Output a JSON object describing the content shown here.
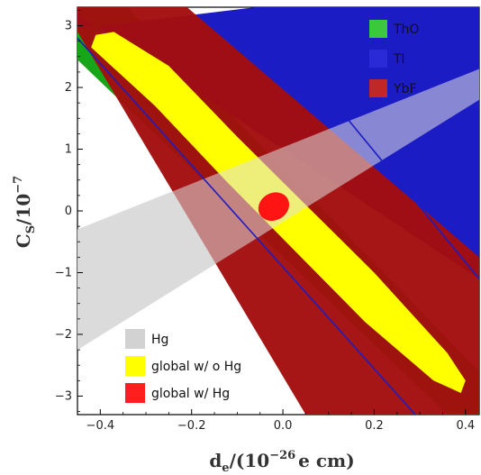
{
  "chart_data": {
    "type": "area",
    "xlabel_main": "d",
    "xlabel_sub": "e",
    "xlabel_rest": "/(10",
    "xlabel_sup": "−26",
    "xlabel_end": "e cm)",
    "ylabel_main": "C",
    "ylabel_sub": "S",
    "ylabel_rest": "/10",
    "ylabel_sup": "−7",
    "xlim": [
      -0.45,
      0.43
    ],
    "ylim": [
      -3.3,
      3.3
    ],
    "xticks": [
      -0.4,
      -0.2,
      0.0,
      0.2,
      0.4
    ],
    "xtick_labels": [
      "−0.4",
      "−0.2",
      "0.0",
      "0.2",
      "0.4"
    ],
    "yticks": [
      -3,
      -2,
      -1,
      0,
      1,
      2,
      3
    ],
    "ytick_labels": [
      "−3",
      "−2",
      "−1",
      "0",
      "1",
      "2",
      "3"
    ],
    "legend_top": [
      {
        "label": "ThO",
        "color": "#3cc83c"
      },
      {
        "label": "Tl",
        "color": "#2a2ad6"
      },
      {
        "label": "YbF",
        "color": "#c02828"
      }
    ],
    "legend_bottom": [
      {
        "label": "Hg",
        "color": "#d2d2d2"
      },
      {
        "label": "global w/ o Hg",
        "color": "#ffff00"
      },
      {
        "label": "global w/  Hg",
        "color": "#ff1e1e"
      }
    ],
    "regions": {
      "Hg": {
        "color": "#cfcfcf",
        "polygon": [
          [
            -0.45,
            -0.3
          ],
          [
            -0.45,
            -2.25
          ],
          [
            0.43,
            1.8
          ],
          [
            0.43,
            2.3
          ]
        ]
      },
      "ThO": {
        "color": "#17a617",
        "polygon": [
          [
            -0.45,
            3.3
          ],
          [
            -0.45,
            2.45
          ],
          [
            0.36,
            -3.3
          ],
          [
            0.43,
            -3.3
          ],
          [
            0.43,
            -2.6
          ],
          [
            -0.34,
            3.3
          ]
        ]
      },
      "Tl": {
        "color": "#1c1cc4",
        "polygon": [
          [
            -0.45,
            2.95
          ],
          [
            -0.06,
            3.3
          ],
          [
            0.43,
            3.3
          ],
          [
            0.43,
            -1.1
          ],
          [
            -0.45,
            3.2
          ]
        ]
      },
      "YbF": {
        "color": "#a30e0e",
        "polygon": [
          [
            -0.45,
            3.3
          ],
          [
            -0.21,
            3.3
          ],
          [
            0.43,
            -0.75
          ],
          [
            0.43,
            -3.3
          ],
          [
            0.05,
            -3.3
          ],
          [
            -0.45,
            2.9
          ]
        ]
      },
      "global_wo_Hg": {
        "color": "#ffff00",
        "polygon": [
          [
            -0.41,
            2.85
          ],
          [
            -0.37,
            2.9
          ],
          [
            -0.25,
            2.35
          ],
          [
            -0.1,
            1.2
          ],
          [
            0.05,
            0.1
          ],
          [
            0.2,
            -1.0
          ],
          [
            0.36,
            -2.3
          ],
          [
            0.4,
            -2.75
          ],
          [
            0.39,
            -2.95
          ],
          [
            0.33,
            -2.75
          ],
          [
            0.18,
            -1.8
          ],
          [
            0.02,
            -0.6
          ],
          [
            -0.12,
            0.45
          ],
          [
            -0.28,
            1.7
          ],
          [
            -0.42,
            2.65
          ]
        ]
      },
      "global_w_Hg": {
        "color": "#ff1414",
        "center": [
          -0.02,
          0.07
        ],
        "rx": 0.035,
        "ry": 0.22,
        "rotation_deg": 30
      }
    }
  }
}
